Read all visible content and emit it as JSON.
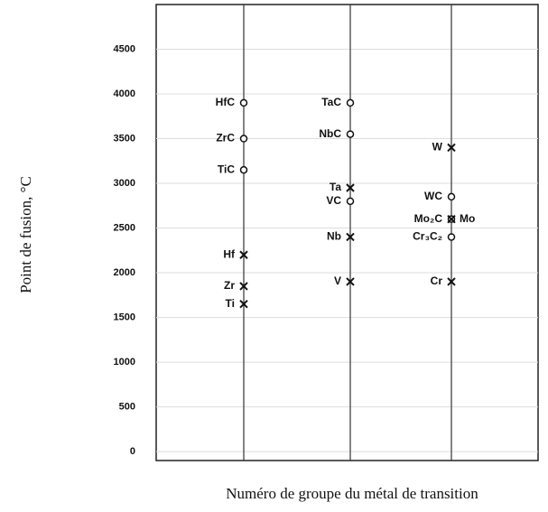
{
  "chart_data": {
    "type": "scatter",
    "y_label": "Point de fusion, °C",
    "x_label": "Numéro de groupe du métal de transition",
    "ylim": [
      -100,
      5000
    ],
    "yticks": [
      0,
      500,
      1000,
      1500,
      2000,
      2500,
      3000,
      3500,
      4000,
      4500
    ],
    "grid": true,
    "groups": [
      {
        "points": [
          {
            "label": "HfC",
            "value": 3900,
            "marker": "o"
          },
          {
            "label": "ZrC",
            "value": 3500,
            "marker": "o"
          },
          {
            "label": "TiC",
            "value": 3150,
            "marker": "o"
          },
          {
            "label": "Hf",
            "value": 2200,
            "marker": "x"
          },
          {
            "label": "Zr",
            "value": 1850,
            "marker": "x"
          },
          {
            "label": "Ti",
            "value": 1650,
            "marker": "x"
          }
        ]
      },
      {
        "points": [
          {
            "label": "TaC",
            "value": 3900,
            "marker": "o"
          },
          {
            "label": "NbC",
            "value": 3550,
            "marker": "o"
          },
          {
            "label": "Ta",
            "value": 2950,
            "marker": "x"
          },
          {
            "label": "VC",
            "value": 2800,
            "marker": "o"
          },
          {
            "label": "Nb",
            "value": 2400,
            "marker": "x"
          },
          {
            "label": "V",
            "value": 1900,
            "marker": "x"
          }
        ]
      },
      {
        "points": [
          {
            "label": "W",
            "value": 3400,
            "marker": "x"
          },
          {
            "label": "WC",
            "value": 2850,
            "marker": "o"
          },
          {
            "label": "Mo₂C",
            "value": 2600,
            "marker": "o"
          },
          {
            "label": "Mo",
            "value": 2600,
            "marker": "x"
          },
          {
            "label": "Cr₃C₂",
            "value": 2400,
            "marker": "o"
          },
          {
            "label": "Cr",
            "value": 1900,
            "marker": "x"
          }
        ]
      }
    ]
  }
}
